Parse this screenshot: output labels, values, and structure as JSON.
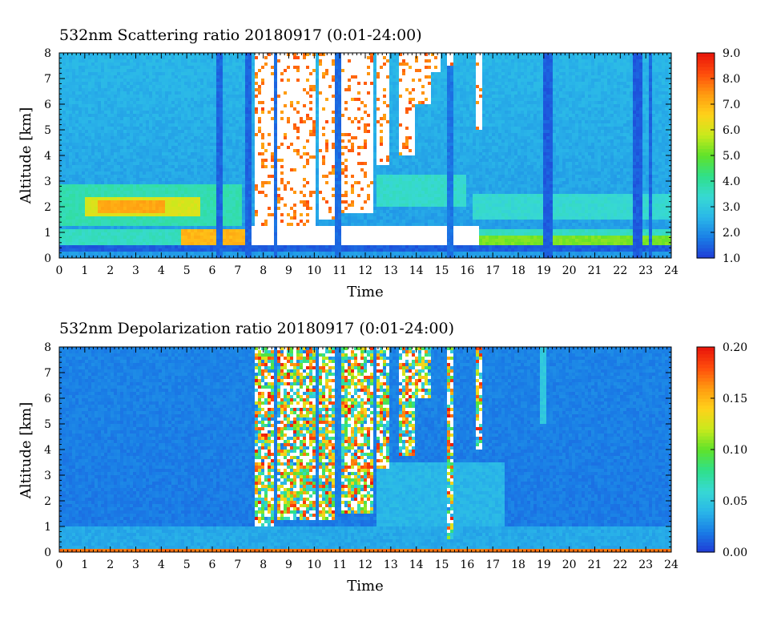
{
  "chart_data": [
    {
      "type": "heatmap",
      "title": "532nm Scattering ratio  20180917 (0:01-24:00)",
      "xlabel": "Time",
      "ylabel": "Altitude [km]",
      "xlim": [
        0,
        24
      ],
      "ylim": [
        0,
        8
      ],
      "x_ticks": [
        "0",
        "1",
        "2",
        "3",
        "4",
        "5",
        "6",
        "7",
        "8",
        "9",
        "10",
        "11",
        "12",
        "13",
        "14",
        "15",
        "16",
        "17",
        "18",
        "19",
        "20",
        "21",
        "22",
        "23",
        "24"
      ],
      "y_ticks": [
        "0",
        "1",
        "2",
        "3",
        "4",
        "5",
        "6",
        "7",
        "8"
      ],
      "colorbar": {
        "min": 1.0,
        "max": 9.0,
        "ticks": [
          "1.0",
          "2.0",
          "3.0",
          "4.0",
          "5.0",
          "6.0",
          "7.0",
          "8.0",
          "9.0"
        ]
      },
      "colorscale": [
        "#1f3bd6",
        "#1a7ee6",
        "#2ab7e8",
        "#37d9d3",
        "#2fe08a",
        "#5fe22a",
        "#c8ea1c",
        "#ffd21a",
        "#ff9a10",
        "#ff4d0c",
        "#e8140a"
      ],
      "background_value": 2.6,
      "clear_air_columns": [
        {
          "t0": 6.2,
          "t1": 6.35,
          "top": 8,
          "value": 1.5
        },
        {
          "t0": 7.35,
          "t1": 7.6,
          "top": 8,
          "value": 1.5
        },
        {
          "t0": 8.4,
          "t1": 8.6,
          "top": 8,
          "value": 1.6
        },
        {
          "t0": 10.8,
          "t1": 11.1,
          "top": 8,
          "value": 1.6
        },
        {
          "t0": 15.2,
          "t1": 15.45,
          "top": 8,
          "value": 1.7
        },
        {
          "t0": 19.0,
          "t1": 19.3,
          "top": 8,
          "value": 1.4
        },
        {
          "t0": 22.55,
          "t1": 22.85,
          "top": 8,
          "value": 1.4
        },
        {
          "t0": 23.1,
          "t1": 23.3,
          "top": 8,
          "value": 1.5
        }
      ],
      "layers": [
        {
          "t0": 0,
          "t1": 7.2,
          "z0": 1.2,
          "z1": 2.9,
          "value": 3.8
        },
        {
          "t0": 1.0,
          "t1": 5.5,
          "z0": 1.6,
          "z1": 2.4,
          "value": 6.0
        },
        {
          "t0": 1.5,
          "t1": 4.2,
          "z0": 1.8,
          "z1": 2.2,
          "value": 7.2
        },
        {
          "t0": 0,
          "t1": 24,
          "z0": 0.3,
          "z1": 0.45,
          "value": 1.4
        },
        {
          "t0": 0,
          "t1": 24,
          "z0": 0.45,
          "z1": 1.1,
          "value": 3.6
        },
        {
          "t0": 4.8,
          "t1": 16.5,
          "z0": 0.45,
          "z1": 1.1,
          "value": 7.0
        },
        {
          "t0": 16.5,
          "t1": 24,
          "z0": 0.45,
          "z1": 0.9,
          "value": 5.2
        },
        {
          "t0": 7.5,
          "t1": 16.5,
          "z0": 0.5,
          "z1": 1.2,
          "value": 9.5
        },
        {
          "t0": 16.2,
          "t1": 24,
          "z0": 1.5,
          "z1": 2.5,
          "value": 3.4
        },
        {
          "t0": 12.5,
          "t1": 16.0,
          "z0": 2.0,
          "z1": 3.2,
          "value": 3.5
        }
      ],
      "cloud_regions": [
        {
          "t0": 7.7,
          "t1": 8.4,
          "z0": 1.1,
          "z1": 8.0
        },
        {
          "t0": 8.6,
          "t1": 10.0,
          "z0": 1.3,
          "z1": 8.0
        },
        {
          "t0": 10.15,
          "t1": 10.8,
          "z0": 1.5,
          "z1": 8.0
        },
        {
          "t0": 11.1,
          "t1": 12.3,
          "z0": 1.8,
          "z1": 8.0
        },
        {
          "t0": 12.5,
          "t1": 13.0,
          "z0": 3.6,
          "z1": 8.0
        },
        {
          "t0": 13.3,
          "t1": 14.0,
          "z0": 4.0,
          "z1": 8.0
        },
        {
          "t0": 13.8,
          "t1": 14.6,
          "z0": 6.0,
          "z1": 8.0
        },
        {
          "t0": 14.6,
          "t1": 15.0,
          "z0": 7.3,
          "z1": 8.0
        },
        {
          "t0": 15.2,
          "t1": 15.5,
          "z0": 7.5,
          "z1": 8.0
        },
        {
          "t0": 16.3,
          "t1": 16.6,
          "z0": 5.0,
          "z1": 8.0
        }
      ]
    },
    {
      "type": "heatmap",
      "title": "532nm Depolarization ratio  20180917 (0:01-24:00)",
      "xlabel": "Time",
      "ylabel": "Altitude [km]",
      "xlim": [
        0,
        24
      ],
      "ylim": [
        0,
        8
      ],
      "x_ticks": [
        "0",
        "1",
        "2",
        "3",
        "4",
        "5",
        "6",
        "7",
        "8",
        "9",
        "10",
        "11",
        "12",
        "13",
        "14",
        "15",
        "16",
        "17",
        "18",
        "19",
        "20",
        "21",
        "22",
        "23",
        "24"
      ],
      "y_ticks": [
        "0",
        "1",
        "2",
        "3",
        "4",
        "5",
        "6",
        "7",
        "8"
      ],
      "colorbar": {
        "min": 0.0,
        "max": 0.2,
        "ticks": [
          "0.00",
          "0.05",
          "0.10",
          "0.15",
          "0.20"
        ]
      },
      "colorscale": [
        "#1f3bd6",
        "#1a7ee6",
        "#2ab7e8",
        "#37d9d3",
        "#2fe08a",
        "#5fe22a",
        "#c8ea1c",
        "#ffd21a",
        "#ff9a10",
        "#ff4d0c",
        "#e8140a"
      ],
      "background_value": 0.022,
      "clear_air_columns": [],
      "layers": [
        {
          "t0": 0,
          "t1": 24,
          "z0": 0.0,
          "z1": 0.12,
          "value": 0.17
        },
        {
          "t0": 0,
          "t1": 24,
          "z0": 0.12,
          "z1": 1.0,
          "value": 0.035
        },
        {
          "t0": 12.5,
          "t1": 17.5,
          "z0": 1.0,
          "z1": 3.5,
          "value": 0.04
        },
        {
          "t0": 18.9,
          "t1": 19.1,
          "z0": 5.0,
          "z1": 8.0,
          "value": 0.05
        }
      ],
      "cloud_regions": [
        {
          "t0": 7.7,
          "t1": 8.4,
          "z0": 1.0,
          "z1": 8.0
        },
        {
          "t0": 8.6,
          "t1": 10.0,
          "z0": 1.3,
          "z1": 8.0
        },
        {
          "t0": 10.15,
          "t1": 10.8,
          "z0": 1.3,
          "z1": 8.0
        },
        {
          "t0": 11.1,
          "t1": 12.3,
          "z0": 1.5,
          "z1": 8.0
        },
        {
          "t0": 12.5,
          "t1": 13.0,
          "z0": 3.3,
          "z1": 8.0
        },
        {
          "t0": 13.3,
          "t1": 14.0,
          "z0": 3.8,
          "z1": 8.0
        },
        {
          "t0": 13.8,
          "t1": 14.6,
          "z0": 6.0,
          "z1": 8.0
        },
        {
          "t0": 15.2,
          "t1": 15.5,
          "z0": 0.5,
          "z1": 8.0
        },
        {
          "t0": 16.3,
          "t1": 16.6,
          "z0": 4.0,
          "z1": 8.0
        }
      ]
    }
  ]
}
